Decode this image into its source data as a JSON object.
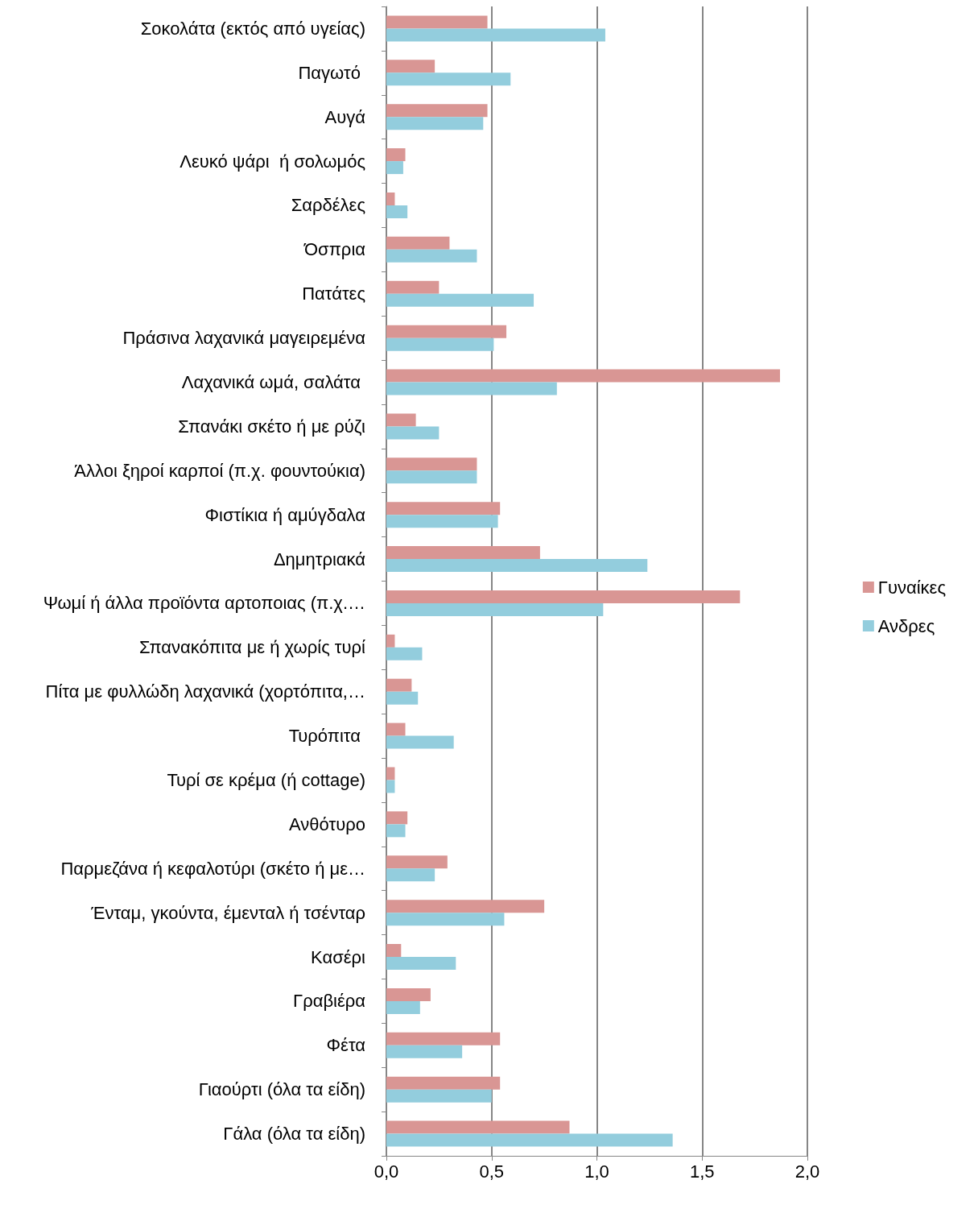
{
  "chart_data": {
    "type": "bar",
    "orientation": "horizontal",
    "categories": [
      "Σοκολάτα (εκτός από υγείας)",
      "Παγωτό ",
      "Αυγά",
      "Λευκό ψάρι  ή σολωμός",
      "Σαρδέλες",
      "Όσπρια",
      "Πατάτες",
      "Πράσινα λαχανικά μαγειρεμένα",
      "Λαχανικά ωμά, σαλάτα ",
      "Σπανάκι σκέτο ή με ρύζι",
      "Άλλοι ξηροί καρποί (π.χ. φουντούκια)",
      "Φιστίκια ή αμύγδαλα",
      "Δημητριακά",
      "Ψωμί ή άλλα προϊόντα αρτοποιας (π.χ.…",
      "Σπανακόπιτα με ή χωρίς τυρί",
      "Πίτα με φυλλώδη λαχανικά (χορτόπιτα,…",
      "Τυρόπιτα ",
      "Τυρί σε κρέμα (ή cottage)",
      "Ανθότυρο",
      "Παρμεζάνα ή κεφαλοτύρι (σκέτο ή με…",
      "Ένταμ, γκούντα, έμενταλ ή τσένταρ",
      "Κασέρι",
      "Γραβιέρα",
      "Φέτα",
      "Γιαούρτι (όλα τα είδη)",
      "Γάλα (όλα τα είδη)"
    ],
    "series": [
      {
        "name": "Γυναίκες",
        "color": "#d99694",
        "values": [
          0.48,
          0.23,
          0.48,
          0.09,
          0.04,
          0.3,
          0.25,
          0.57,
          1.87,
          0.14,
          0.43,
          0.54,
          0.73,
          1.68,
          0.04,
          0.12,
          0.09,
          0.04,
          0.1,
          0.29,
          0.75,
          0.07,
          0.21,
          0.54,
          0.54,
          0.87
        ]
      },
      {
        "name": "Ανδρες",
        "color": "#93cddd",
        "values": [
          1.04,
          0.59,
          0.46,
          0.08,
          0.1,
          0.43,
          0.7,
          0.51,
          0.81,
          0.25,
          0.43,
          0.53,
          1.24,
          1.03,
          0.17,
          0.15,
          0.32,
          0.04,
          0.09,
          0.23,
          0.56,
          0.33,
          0.16,
          0.36,
          0.5,
          1.36
        ]
      }
    ],
    "xlim": [
      0,
      2
    ],
    "xticks": [
      {
        "value": 0,
        "label": "0,0"
      },
      {
        "value": 0.5,
        "label": "0,5"
      },
      {
        "value": 1,
        "label": "1,0"
      },
      {
        "value": 1.5,
        "label": "1,5"
      },
      {
        "value": 2,
        "label": "2,0"
      }
    ],
    "grid": "x",
    "legend": "right"
  }
}
